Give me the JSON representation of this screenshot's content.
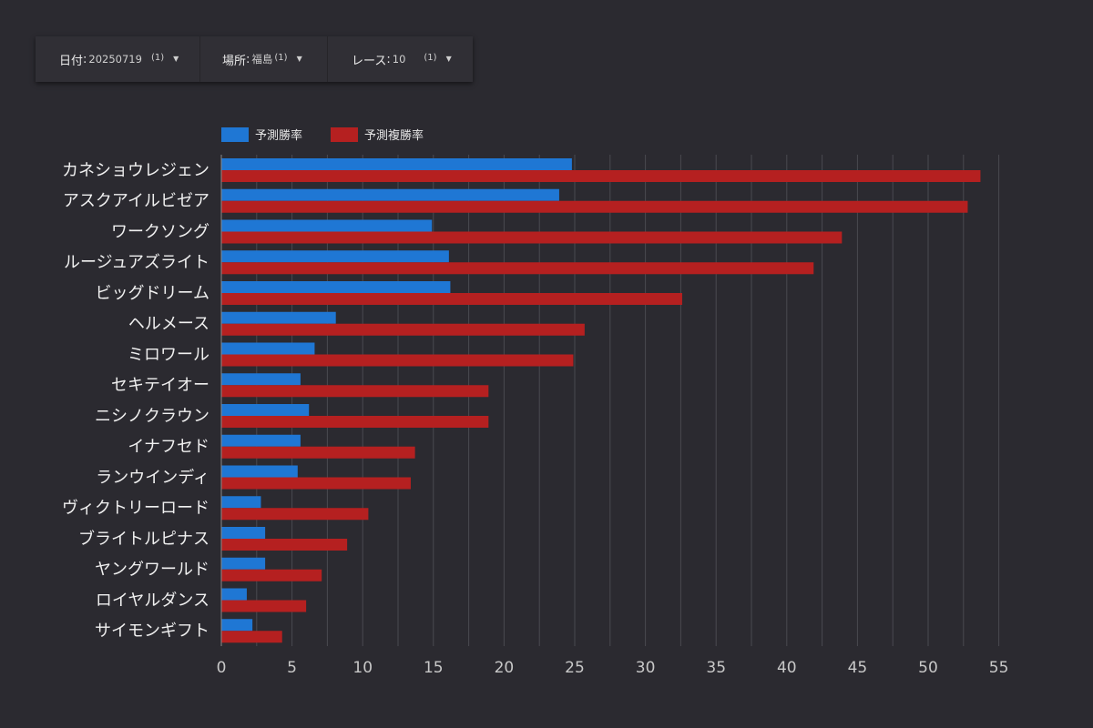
{
  "filters": [
    {
      "label": "日付",
      "value": "20250719",
      "count": "(1)"
    },
    {
      "label": "場所",
      "value": "福島",
      "count": "(1)"
    },
    {
      "label": "レース",
      "value": "10",
      "count": "(1)"
    }
  ],
  "colors": {
    "background": "#2b2a30",
    "series_win": "#1f77d4",
    "series_place": "#b52020",
    "gridline": "#4a4950"
  },
  "chart_data": {
    "type": "bar",
    "orientation": "horizontal",
    "categories": [
      "カネショウレジェン",
      "アスクアイルビゼア",
      "ワークソング",
      "ルージュアズライト",
      "ビッグドリーム",
      "ヘルメース",
      "ミロワール",
      "セキテイオー",
      "ニシノクラウン",
      "イナフセド",
      "ランウインディ",
      "ヴィクトリーロード",
      "ブライトルピナス",
      "ヤングワールド",
      "ロイヤルダンス",
      "サイモンギフト"
    ],
    "series": [
      {
        "name": "予測勝率",
        "color": "#1f77d4",
        "values": [
          24.8,
          23.9,
          14.9,
          16.1,
          16.2,
          8.1,
          6.6,
          5.6,
          6.2,
          5.6,
          5.4,
          2.8,
          3.1,
          3.1,
          1.8,
          2.2
        ]
      },
      {
        "name": "予測複勝率",
        "color": "#b52020",
        "values": [
          53.7,
          52.8,
          43.9,
          41.9,
          32.6,
          25.7,
          24.9,
          18.9,
          18.9,
          13.7,
          13.4,
          10.4,
          8.9,
          7.1,
          6.0,
          4.3
        ]
      }
    ],
    "xlim": [
      0,
      55
    ],
    "xticks": [
      0,
      5,
      10,
      15,
      20,
      25,
      30,
      35,
      40,
      45,
      50,
      55
    ],
    "grid": true,
    "legend": "top-left"
  }
}
